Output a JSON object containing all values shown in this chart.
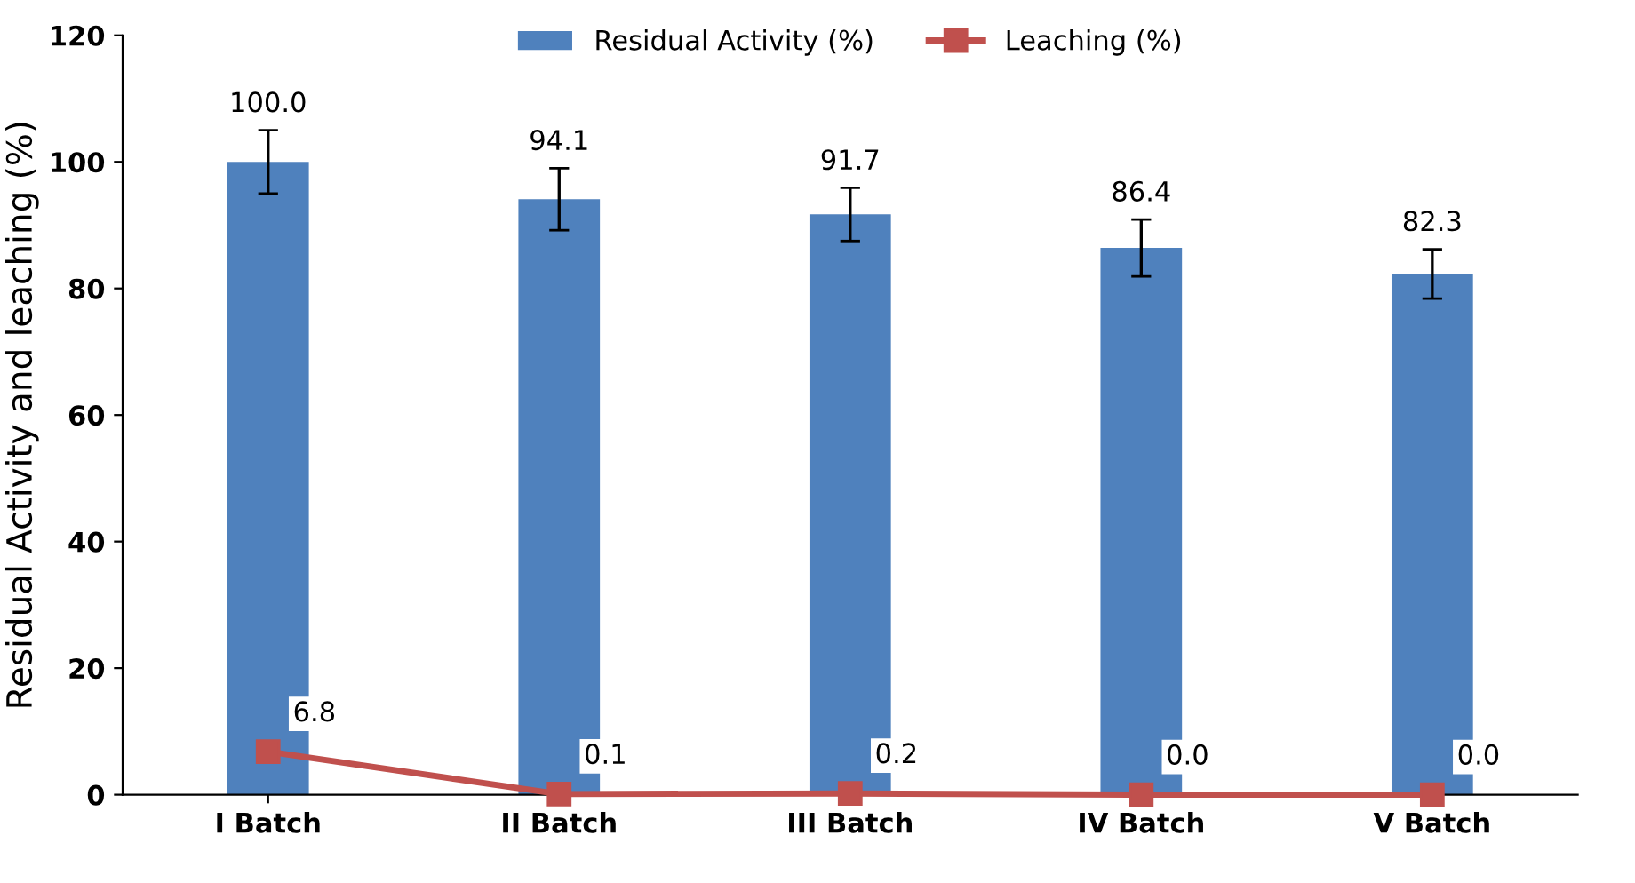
{
  "chart_data": {
    "type": "bar",
    "ylabel": "Residual Activity and leaching (%)",
    "categories": [
      "I Batch",
      "II Batch",
      "III Batch",
      "IV Batch",
      "V Batch"
    ],
    "series": [
      {
        "name": "Residual Activity (%)",
        "color": "#4f81bd",
        "values": [
          100.0,
          94.1,
          91.7,
          86.4,
          82.3
        ],
        "errors": [
          5,
          4.9,
          4.2,
          4.5,
          3.9
        ],
        "value_labels": [
          "100.0",
          "94.1",
          "91.7",
          "86.4",
          "82.3"
        ]
      },
      {
        "name": "Leaching (%)",
        "type": "line",
        "color": "#c0504d",
        "marker": "square",
        "values": [
          6.8,
          0.1,
          0.2,
          0.0,
          0.0
        ],
        "value_labels": [
          "6.8",
          "0.1",
          "0.2",
          "0.0",
          "0.0"
        ]
      }
    ],
    "ylim": [
      0,
      120
    ],
    "yticks": [
      0,
      20,
      40,
      60,
      80,
      100,
      120
    ],
    "grid": false,
    "legend": "top"
  }
}
